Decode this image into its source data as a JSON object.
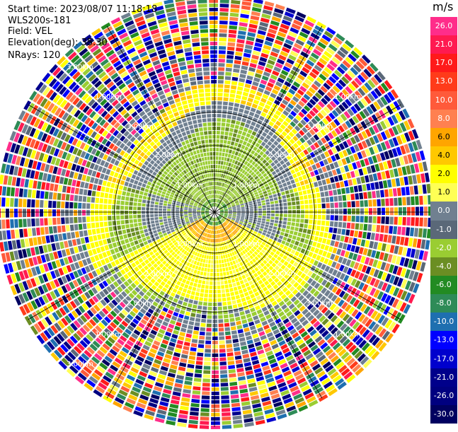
{
  "header": {
    "start_time": "Start time: 2023/08/07 11:18:18",
    "instrument": "WLS200s-181",
    "field": "Field: VEL",
    "elevation": "Elevation(deg): 35.30",
    "nrays": "NRays: 120"
  },
  "colorbar": {
    "unit": "m/s",
    "ticks": [
      "26.0",
      "21.0",
      "17.0",
      "13.0",
      "10.0",
      "8.0",
      "6.0",
      "4.0",
      "2.0",
      "1.0",
      "0.0",
      "-1.0",
      "-2.0",
      "-4.0",
      "-6.0",
      "-8.0",
      "-10.0",
      "-13.0",
      "-17.0",
      "-21.0",
      "-26.0",
      "-30.0"
    ],
    "colors": [
      "#ff2d8a",
      "#ff1a50",
      "#ff1a1a",
      "#ff3b1a",
      "#ff5a3a",
      "#ff8050",
      "#ffa500",
      "#ffc800",
      "#ffff00",
      "#ffff55",
      "#708090",
      "#5a6878",
      "#9acd32",
      "#6b8e23",
      "#228b22",
      "#2e8b57",
      "#1e6fb0",
      "#0000ff",
      "#0000cd",
      "#00008b",
      "#000080",
      "#000060"
    ]
  },
  "chart_data": {
    "type": "ppi",
    "field": "VEL",
    "unit": "m/s",
    "nrays": 120,
    "elevation_deg": 35.3,
    "range_rings_km": [
      1.0,
      2.0,
      3.0
    ],
    "range_ring_labels": [
      "1.00km",
      "2.00km",
      "3.00km"
    ],
    "max_range_km": 4.0,
    "color_scale_ticks": [
      26.0,
      21.0,
      17.0,
      13.0,
      10.0,
      8.0,
      6.0,
      4.0,
      2.0,
      1.0,
      0.0,
      -1.0,
      -2.0,
      -4.0,
      -6.0,
      -8.0,
      -10.0,
      -13.0,
      -17.0,
      -21.0,
      -26.0,
      -30.0
    ],
    "regions": [
      {
        "desc": "north sector (az 300-60), 1-2.2 km",
        "approx_velocity_ms": -2.0
      },
      {
        "desc": "south sector (az 120-240), 0.5-2.3 km",
        "approx_velocity_ms": 1.5
      },
      {
        "desc": "east/west bands near 1 km",
        "approx_velocity_ms": 0.0
      },
      {
        "desc": "beyond ~2.5 km",
        "approx_velocity_ms": "noise"
      }
    ]
  }
}
